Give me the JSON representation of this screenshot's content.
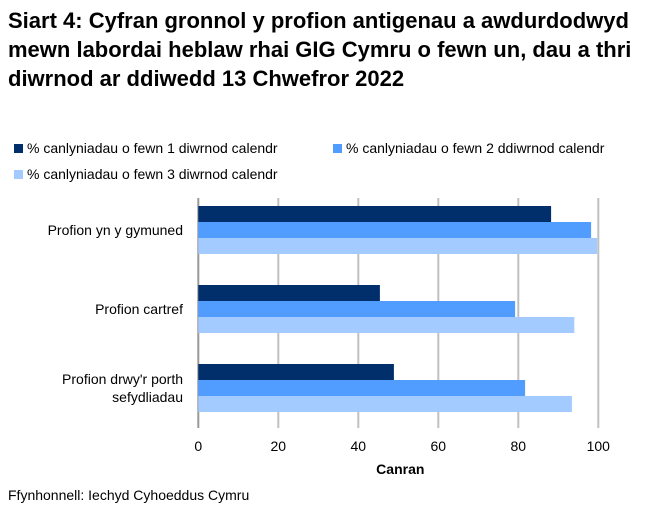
{
  "chart_data": {
    "type": "bar",
    "orientation": "horizontal",
    "title": "Siart 4: Cyfran gronnol y profion antigenau a awdurdodwyd mewn labordai heblaw rhai GIG Cymru o fewn un, dau a thri diwrnod ar ddiwedd 13 Chwefror 2022",
    "categories": [
      "Profion yn y gymuned",
      "Profion cartref",
      "Profion drwy'r porth sefydliadau"
    ],
    "series": [
      {
        "name": "% canlyniadau o fewn 1 diwrnod calendr",
        "color": "#002f6c",
        "values": [
          88.2,
          45.4,
          48.9
        ]
      },
      {
        "name": "% canlyniadau o fewn 2 ddiwrnod calendr",
        "color": "#519dff",
        "values": [
          98.2,
          79.2,
          81.7
        ]
      },
      {
        "name": "% canlyniadau o fewn 3 diwrnod calendr",
        "color": "#a3cbff",
        "values": [
          99.7,
          94.0,
          93.4
        ]
      }
    ],
    "xlabel": "Canran",
    "ylabel": "",
    "xlim": [
      0,
      100
    ],
    "xticks": [
      "0",
      "20",
      "40",
      "60",
      "80",
      "100"
    ],
    "grid": true,
    "legend": "top"
  },
  "source": "Ffynhonnell: Iechyd Cyhoeddus Cymru"
}
